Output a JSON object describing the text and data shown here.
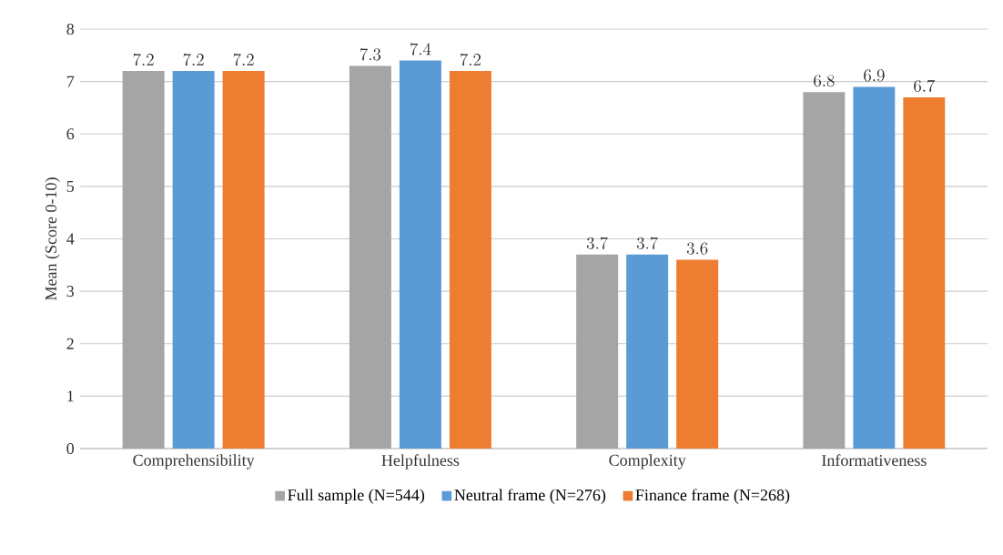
{
  "chart_data": {
    "type": "bar",
    "ylabel": "Mean (Score 0-10)",
    "categories": [
      "Comprehensibility",
      "Helpfulness",
      "Complexity",
      "Informativeness"
    ],
    "series": [
      {
        "name": "Full sample (N=544)",
        "color": "#a5a5a5",
        "values": [
          7.2,
          7.3,
          3.7,
          6.8
        ]
      },
      {
        "name": "Neutral frame (N=276)",
        "color": "#5b9bd5",
        "values": [
          7.2,
          7.4,
          3.7,
          6.9
        ]
      },
      {
        "name": "Finance frame (N=268)",
        "color": "#ed7d31",
        "values": [
          7.2,
          7.2,
          3.6,
          6.7
        ]
      }
    ],
    "ylim": [
      0,
      8
    ],
    "yticks": [
      0,
      1,
      2,
      3,
      4,
      5,
      6,
      7,
      8
    ],
    "grid": "y",
    "legend": "bottom",
    "data_labels": true
  }
}
